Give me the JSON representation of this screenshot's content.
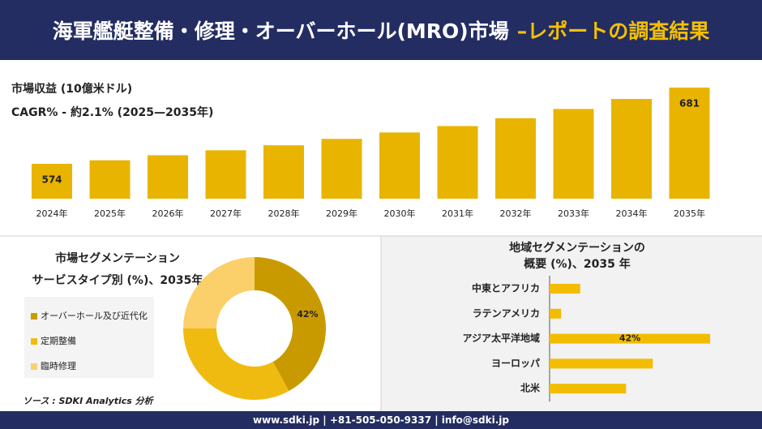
{
  "header": {
    "title": "海軍艦艇整備・修理・オーバーホール(MRO)市場",
    "subtitle": "–レポートの調査結果"
  },
  "chart_data": [
    {
      "type": "bar",
      "title": "市場収益 (10億米ドル)",
      "subtitle": "CAGR% - 約2.1% (2025—2035年)",
      "categories": [
        "2024年",
        "2025年",
        "2026年",
        "2027年",
        "2028年",
        "2029年",
        "2030年",
        "2031年",
        "2032年",
        "2033年",
        "2034年",
        "2035年"
      ],
      "values": [
        574,
        579,
        586,
        593,
        600,
        609,
        618,
        627,
        638,
        651,
        665,
        681
      ],
      "value_labels": [
        "574",
        null,
        null,
        null,
        null,
        null,
        null,
        null,
        null,
        null,
        null,
        "681"
      ],
      "color": "#e9b400"
    },
    {
      "type": "donut",
      "title": "市場セグメンテーション",
      "subtitle": "サービスタイプ別 (%)、2035年",
      "categories": [
        "オーバーホール及び近代化",
        "定期整備",
        "臨時修理"
      ],
      "values": [
        42,
        33,
        25
      ],
      "value_labels": [
        "42%",
        null,
        null
      ],
      "colors": [
        "#c99a00",
        "#f0bb10",
        "#fbcf6a"
      ]
    },
    {
      "type": "hbar",
      "title": "地域セグメンテーションの",
      "subtitle": "概要 (%)、2035 年",
      "categories": [
        "中東とアフリカ",
        "ラテンアメリカ",
        "アジア太平洋地域",
        "ヨーロッパ",
        "北米"
      ],
      "values": [
        8,
        3,
        42,
        27,
        20
      ],
      "value_labels": [
        null,
        null,
        "42%",
        null,
        null
      ],
      "color": "#f2bc00"
    }
  ],
  "source": "ソース : SDKI Analytics 分析",
  "footer": "www.sdki.jp | +81-505-050-9337 | info@sdki.jp"
}
